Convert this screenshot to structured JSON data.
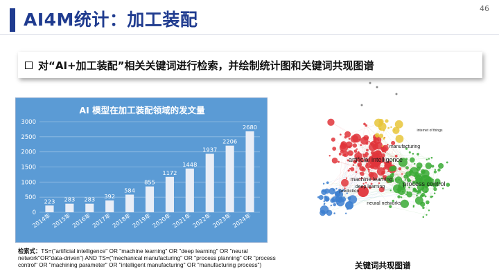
{
  "slide": {
    "title": "AI4M统计：加工装配",
    "page_number": "46",
    "subtitle": "对“AI+加工装配”相关关键词进行检索，并绘制统计图和关键词共现图谱",
    "accent_color": "#1f3b8f"
  },
  "chart_data": {
    "type": "bar",
    "title": "AI 模型在加工装配领域的发文量",
    "categories": [
      "2014年",
      "2015年",
      "2016年",
      "2017年",
      "2018年",
      "2019年",
      "2020年",
      "2021年",
      "2022年",
      "2023年",
      "2024年"
    ],
    "values": [
      223,
      283,
      283,
      392,
      584,
      855,
      1172,
      1448,
      1937,
      2206,
      2680
    ],
    "ylim": [
      0,
      3000
    ],
    "yticks": [
      0,
      500,
      1000,
      1500,
      2000,
      2500,
      3000
    ],
    "grid": true,
    "legend": "none",
    "background_color": "#5b9bd5",
    "bar_color": "#e9eef7"
  },
  "footnote": {
    "label": "检索式：",
    "text": "TS=(\"artificial intelligence\" OR \"machine learning\" OR \"deep learning\" OR \"neural network\"OR\"data-driven\") AND TS=(\"mechanical manufacturing\" OR \"process planning\" OR \"process control\" OR \"machining parameter\" OR \"intelligent manufacturing\" OR \"manufacturing process\")"
  },
  "network": {
    "caption": "关键词共现图谱",
    "labels": [
      "artificial intelligence",
      "machine learning",
      "process control",
      "deep learning",
      "neural networks",
      "manufacturing",
      "internet of things",
      "prediction"
    ],
    "cluster_colors": [
      "#e0353b",
      "#3aaa35",
      "#3d7fd0",
      "#e8c53a"
    ]
  }
}
